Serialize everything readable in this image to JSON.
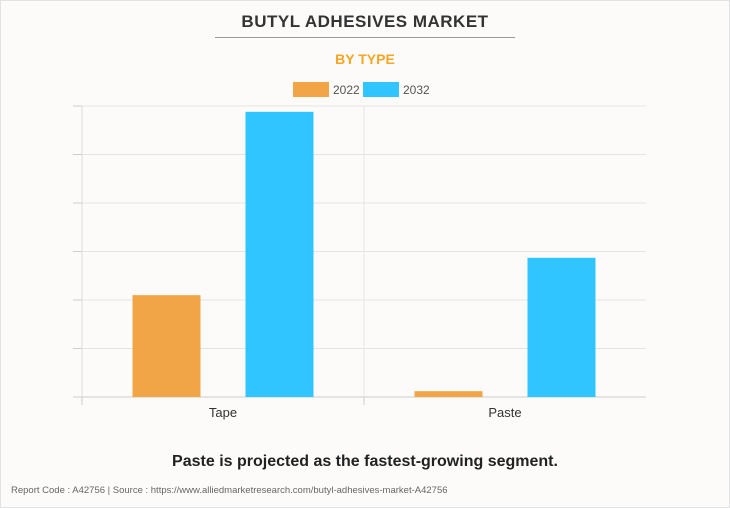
{
  "chart_data": {
    "type": "bar",
    "title": "BUTYL ADHESIVES MARKET",
    "subtitle": "BY TYPE",
    "categories": [
      "Tape",
      "Paste"
    ],
    "series": [
      {
        "name": "2022",
        "color": "#f2a546",
        "values": [
          2.1,
          0.12
        ]
      },
      {
        "name": "2032",
        "color": "#30c5ff",
        "values": [
          5.88,
          2.87
        ]
      }
    ],
    "xlabel": "",
    "ylabel": "",
    "ylim": [
      0,
      6
    ],
    "grid": true,
    "legend": "top-center"
  },
  "caption": "Paste is projected as the fastest-growing segment.",
  "footer": "Report Code : A42756  |  Source : https://www.alliedmarketresearch.com/butyl-adhesives-market-A42756"
}
